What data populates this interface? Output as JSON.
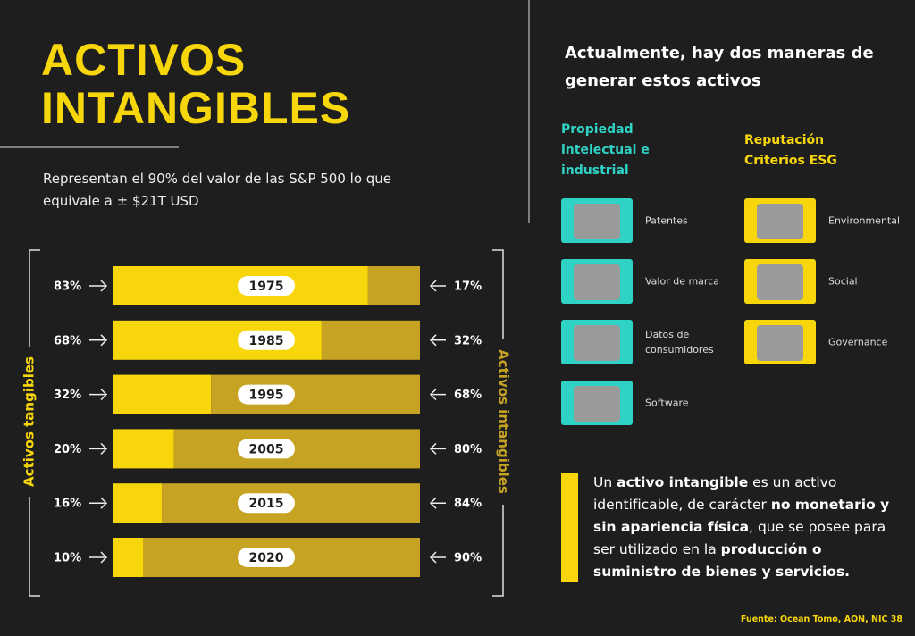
{
  "title_lines": [
    "ACTIVOS",
    "INTANGIBLES"
  ],
  "subtitle": "Representan el 90% del valor de las S&P 500 lo que equivale a ± $21T USD",
  "chart_data": {
    "type": "stacked_bar",
    "orientation": "horizontal",
    "categories": [
      "1975",
      "1985",
      "1995",
      "2005",
      "2015",
      "2020"
    ],
    "series": [
      {
        "name": "Activos tangibles",
        "color": "#f7d70b",
        "values": [
          83,
          68,
          32,
          20,
          16,
          10
        ],
        "value_labels": [
          "83%",
          "68%",
          "32%",
          "20%",
          "16%",
          "10%"
        ]
      },
      {
        "name": "Activos intangibles",
        "color": "#c6a323",
        "values": [
          17,
          32,
          68,
          80,
          84,
          90
        ],
        "value_labels": [
          "17%",
          "32%",
          "68%",
          "80%",
          "84%",
          "90%"
        ]
      }
    ],
    "xlim": [
      0,
      100
    ]
  },
  "heading": "Actualmente, hay dos maneras de generar estos activos",
  "columns": [
    {
      "title": "Propiedad intelectual e industrial",
      "color": "#2ed3c6",
      "items": [
        "Patentes",
        "Valor de marca",
        "Datos de consumidores",
        "Software"
      ]
    },
    {
      "title": "Reputación Criterios ESG",
      "color": "#f7d70b",
      "items": [
        "Environmental",
        "Social",
        "Governance"
      ]
    }
  ],
  "definition": [
    {
      "text": "Un ",
      "bold": false
    },
    {
      "text": "activo intangible",
      "bold": true
    },
    {
      "text": " es un activo identificable, de carácter ",
      "bold": false
    },
    {
      "text": "no monetario y sin apariencia física",
      "bold": true
    },
    {
      "text": ", que se posee para ser utilizado en la ",
      "bold": false
    },
    {
      "text": "producción o suministro de bienes y servicios.",
      "bold": true
    }
  ],
  "source": "Fuente: Ocean Tomo, AON, NIC 38"
}
